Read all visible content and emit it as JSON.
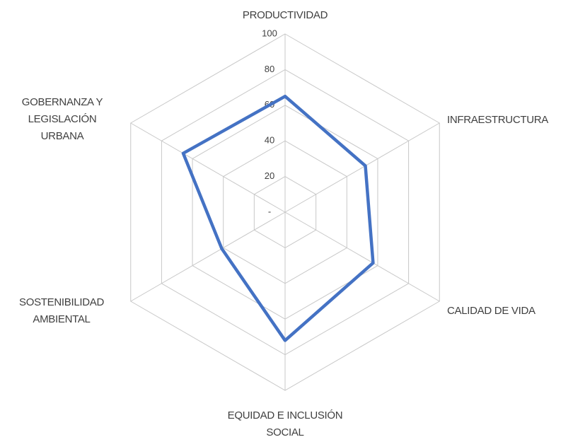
{
  "chart_data": {
    "type": "radar",
    "categories": [
      "PRODUCTIVIDAD",
      "INFRAESTRUCTURA",
      "CALIDAD DE VIDA",
      "EQUIDAD E INCLUSIÓN SOCIAL",
      "SOSTENIBILIDAD AMBIENTAL",
      "GOBERNANZA Y LEGISLACIÓN URBANA"
    ],
    "series": [
      {
        "color": "#4472c4",
        "values": [
          65,
          52,
          57,
          72,
          41,
          66
        ]
      }
    ],
    "ylim": [
      0,
      100
    ],
    "yticks": [
      {
        "value": 0,
        "label": "-"
      },
      20,
      40,
      60,
      80,
      100
    ],
    "grid": true
  }
}
